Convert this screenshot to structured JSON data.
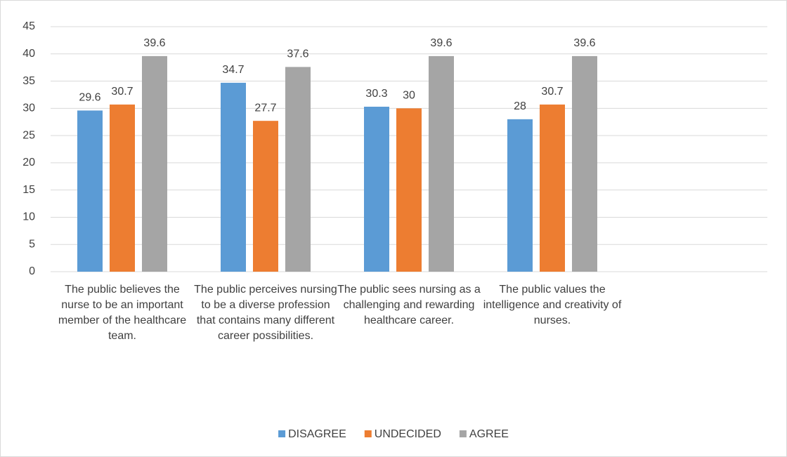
{
  "chart_data": {
    "type": "bar",
    "categories": [
      "The public believes the nurse to be an important member of the healthcare team.",
      "The public perceives nursing to be a diverse profession that contains many different career possibilities.",
      "The public sees nursing as a challenging and rewarding healthcare career.",
      "The public values the intelligence and creativity of nurses.",
      null
    ],
    "series": [
      {
        "name": "DISAGREE",
        "color": "#5b9bd5",
        "values": [
          29.6,
          34.7,
          30.3,
          28,
          null
        ]
      },
      {
        "name": "UNDECIDED",
        "color": "#ed7d31",
        "values": [
          30.7,
          27.7,
          30,
          30.7,
          null
        ]
      },
      {
        "name": "AGREE",
        "color": "#a5a5a5",
        "values": [
          39.6,
          37.6,
          39.6,
          39.6,
          null
        ]
      }
    ],
    "ylim": [
      0,
      45
    ],
    "yticks": [
      0,
      5,
      10,
      15,
      20,
      25,
      30,
      35,
      40,
      45
    ],
    "grid": true,
    "legend": "bottom"
  }
}
